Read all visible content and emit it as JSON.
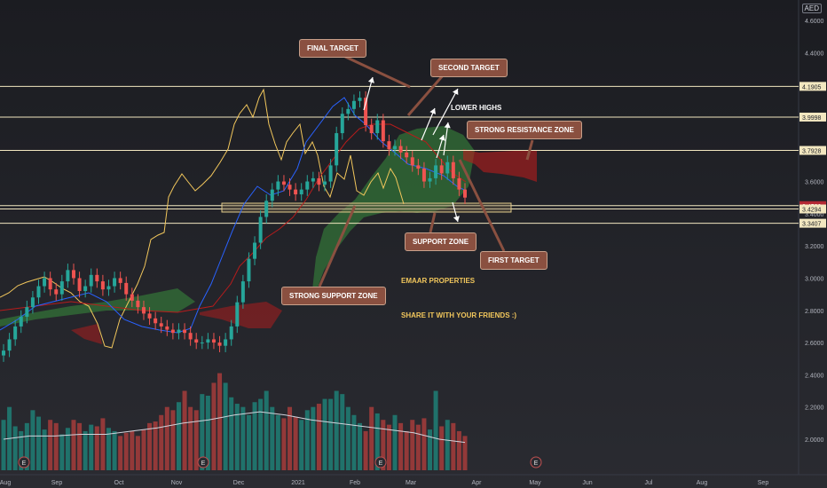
{
  "currency": "AED",
  "chart_data": {
    "type": "candlestick",
    "instrument": "EMAAR PROPERTIES",
    "ylim": [
      1.85,
      4.65
    ],
    "y_ticks": [
      "4.6000",
      "4.4000",
      "4.2000",
      "4.0000",
      "3.8000",
      "3.6000",
      "3.4000",
      "3.2000",
      "3.0000",
      "2.8000",
      "2.6000",
      "2.4000",
      "2.2000",
      "2.0000"
    ],
    "x_ticks": [
      "Aug",
      "Sep",
      "Oct",
      "Nov",
      "Dec",
      "2021",
      "Feb",
      "Mar",
      "Apr",
      "May",
      "Jun",
      "Jul",
      "Aug",
      "Sep"
    ],
    "horizontal_levels": [
      {
        "label": "4.1905",
        "value": 4.1905,
        "color": "#f2e7c0",
        "label_color": "#1f2026",
        "label_bg": "#f2e7c0"
      },
      {
        "label": "3.9998",
        "value": 3.9998,
        "color": "#f2e7c0",
        "label_color": "#1f2026",
        "label_bg": "#f2e7c0"
      },
      {
        "label": "3.7928",
        "value": 3.7928,
        "color": "#f2e7c0",
        "label_color": "#1f2026",
        "label_bg": "#f2e7c0"
      },
      {
        "label": "3.4500",
        "value": 3.45,
        "color": "#f2e7c0",
        "label_color": "#ffffff",
        "label_bg": "#b22833"
      },
      {
        "label": "3.4294",
        "value": 3.4294,
        "color": "#f2e7c0",
        "label_color": "#1f2026",
        "label_bg": "#f2e7c0"
      },
      {
        "label": "3.3407",
        "value": 3.3407,
        "color": "#f2e7c0",
        "label_color": "#1f2026",
        "label_bg": "#f2e7c0"
      }
    ],
    "close_series": [
      2.55,
      2.62,
      2.7,
      2.76,
      2.82,
      2.88,
      2.95,
      3.0,
      2.93,
      2.9,
      2.98,
      3.05,
      3.0,
      2.92,
      2.95,
      3.02,
      2.98,
      2.93,
      2.95,
      3.0,
      2.97,
      2.9,
      2.86,
      2.82,
      2.78,
      2.75,
      2.72,
      2.7,
      2.68,
      2.66,
      2.68,
      2.66,
      2.62,
      2.6,
      2.6,
      2.62,
      2.6,
      2.58,
      2.62,
      2.7,
      2.85,
      2.98,
      3.12,
      3.22,
      3.38,
      3.48,
      3.55,
      3.6,
      3.58,
      3.55,
      3.52,
      3.55,
      3.6,
      3.62,
      3.58,
      3.6,
      3.7,
      3.9,
      4.02,
      4.05,
      4.1,
      4.12,
      3.95,
      3.9,
      3.98,
      3.85,
      3.8,
      3.82,
      3.78,
      3.75,
      3.7,
      3.68,
      3.6,
      3.62,
      3.7,
      3.65,
      3.72,
      3.62,
      3.55,
      3.5
    ],
    "volume_series": [
      2.12,
      2.2,
      2.08,
      2.05,
      2.1,
      2.18,
      2.14,
      2.06,
      2.12,
      2.1,
      2.03,
      2.07,
      2.12,
      2.1,
      2.05,
      2.09,
      2.08,
      2.13,
      2.07,
      2.05,
      2.02,
      2.04,
      2.05,
      2.02,
      2.06,
      2.1,
      2.11,
      2.15,
      2.2,
      2.18,
      2.23,
      2.3,
      2.2,
      2.18,
      2.28,
      2.27,
      2.35,
      2.41,
      2.35,
      2.26,
      2.22,
      2.2,
      2.15,
      2.23,
      2.25,
      2.3,
      2.2,
      2.15,
      2.13,
      2.2,
      2.14,
      2.12,
      2.18,
      2.2,
      2.22,
      2.25,
      2.25,
      2.3,
      2.28,
      2.2,
      2.15,
      2.1,
      2.05,
      2.2,
      2.16,
      2.12,
      2.09,
      2.15,
      2.1,
      2.05,
      2.12,
      2.09,
      2.13,
      2.06,
      2.3,
      2.08,
      2.12,
      2.1,
      2.05,
      2.02
    ],
    "volume_avg": [
      2.0,
      2.02,
      2.02,
      2.03,
      2.03,
      2.05,
      2.07,
      2.1,
      2.12,
      2.15,
      2.17,
      2.15,
      2.12,
      2.1,
      2.08,
      2.06,
      2.04,
      2.0,
      1.98
    ],
    "annotations": [
      {
        "text": "FINAL TARGET",
        "style": "callout"
      },
      {
        "text": "SECOND TARGET",
        "style": "callout"
      },
      {
        "text": "LOWER HIGHS",
        "style": "plain"
      },
      {
        "text": "STRONG RESISTANCE ZONE",
        "style": "callout"
      },
      {
        "text": "SUPPORT ZONE",
        "style": "callout"
      },
      {
        "text": "FIRST TARGET",
        "style": "callout"
      },
      {
        "text": "STRONG SUPPORT ZONE",
        "style": "callout"
      },
      {
        "text": "EMAAR PROPERTIES",
        "style": "gold"
      },
      {
        "text": "SHARE IT WITH YOUR FRIENDS :)",
        "style": "gold"
      }
    ],
    "event_marker": "E",
    "colors": {
      "up": "#26a69a",
      "down": "#ef5350",
      "tenkan": "#2962ff",
      "kijun": "#b71c1c",
      "chikou": "#f2c75c",
      "cloud_bull": "#388e3c",
      "cloud_bear": "#b71c1c"
    }
  }
}
